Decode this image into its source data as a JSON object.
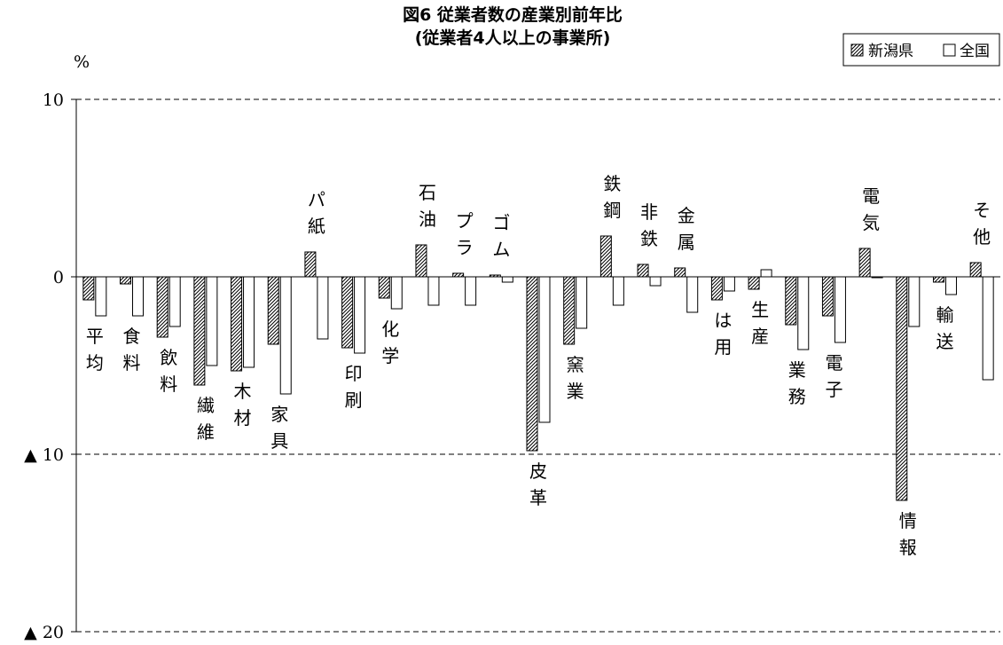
{
  "chart_data": {
    "type": "bar",
    "title": "図6 従業者数の産業別前年比",
    "subtitle": "(従業者4人以上の事業所)",
    "ylabel": "%",
    "ylim": [
      -20,
      10
    ],
    "yticks": [
      {
        "value": 10,
        "label": "10"
      },
      {
        "value": 0,
        "label": "0"
      },
      {
        "value": -10,
        "label": "▲ 10"
      },
      {
        "value": -20,
        "label": "▲ 20"
      }
    ],
    "grid": "dashed horizontal",
    "legend_position": "top-right",
    "categories": [
      {
        "label": "平均",
        "chars": [
          "平",
          "均"
        ],
        "side": "below"
      },
      {
        "label": "食料",
        "chars": [
          "食",
          "料"
        ],
        "side": "below"
      },
      {
        "label": "飲料",
        "chars": [
          "飲",
          "料"
        ],
        "side": "below"
      },
      {
        "label": "繊維",
        "chars": [
          "繊",
          "維"
        ],
        "side": "below"
      },
      {
        "label": "木材",
        "chars": [
          "木",
          "材"
        ],
        "side": "below"
      },
      {
        "label": "家具",
        "chars": [
          "家",
          "具"
        ],
        "side": "below"
      },
      {
        "label": "パ紙",
        "chars": [
          "パ",
          "紙"
        ],
        "side": "above"
      },
      {
        "label": "印刷",
        "chars": [
          "印",
          "刷"
        ],
        "side": "below"
      },
      {
        "label": "化学",
        "chars": [
          "化",
          "学"
        ],
        "side": "below"
      },
      {
        "label": "石油",
        "chars": [
          "石",
          "油"
        ],
        "side": "above"
      },
      {
        "label": "プラ",
        "chars": [
          "プ",
          "ラ"
        ],
        "side": "above"
      },
      {
        "label": "ゴム",
        "chars": [
          "ゴ",
          "ム"
        ],
        "side": "above"
      },
      {
        "label": "皮革",
        "chars": [
          "皮",
          "革"
        ],
        "side": "below"
      },
      {
        "label": "窯業",
        "chars": [
          "窯",
          "業"
        ],
        "side": "below"
      },
      {
        "label": "鉄鋼",
        "chars": [
          "鉄",
          "鋼"
        ],
        "side": "above"
      },
      {
        "label": "非鉄",
        "chars": [
          "非",
          "鉄"
        ],
        "side": "above"
      },
      {
        "label": "金属",
        "chars": [
          "金",
          "属"
        ],
        "side": "above"
      },
      {
        "label": "は用",
        "chars": [
          "は",
          "用"
        ],
        "side": "below"
      },
      {
        "label": "生産",
        "chars": [
          "生",
          "産"
        ],
        "side": "below"
      },
      {
        "label": "業務",
        "chars": [
          "業",
          "務"
        ],
        "side": "below"
      },
      {
        "label": "電子",
        "chars": [
          "電",
          "子"
        ],
        "side": "below"
      },
      {
        "label": "電気",
        "chars": [
          "電",
          "気"
        ],
        "side": "above"
      },
      {
        "label": "情報",
        "chars": [
          "情",
          "報"
        ],
        "side": "below"
      },
      {
        "label": "輸送",
        "chars": [
          "輸",
          "送"
        ],
        "side": "below"
      },
      {
        "label": "その他",
        "chars": [
          "そ",
          "他"
        ],
        "side": "above"
      }
    ],
    "series": [
      {
        "name": "新潟県",
        "pattern": "diagonal-hatch",
        "color": "#000000",
        "values": [
          -1.3,
          -0.4,
          -3.4,
          -6.1,
          -5.3,
          -3.8,
          1.4,
          -4.0,
          -1.2,
          1.8,
          0.2,
          0.1,
          -9.8,
          -3.8,
          2.3,
          0.7,
          0.5,
          -1.3,
          -0.7,
          -2.7,
          -2.2,
          1.6,
          -12.6,
          -0.3,
          0.8
        ]
      },
      {
        "name": "全国",
        "pattern": "none",
        "color": "#000000",
        "values": [
          -2.2,
          -2.2,
          -2.8,
          -5.0,
          -5.1,
          -6.6,
          -3.5,
          -4.3,
          -1.8,
          -1.6,
          -1.6,
          -0.3,
          -8.2,
          -2.9,
          -1.6,
          -0.5,
          -2.0,
          -0.8,
          0.4,
          -4.1,
          -3.7,
          0.0,
          -2.8,
          -1.0,
          -5.8
        ]
      }
    ]
  }
}
